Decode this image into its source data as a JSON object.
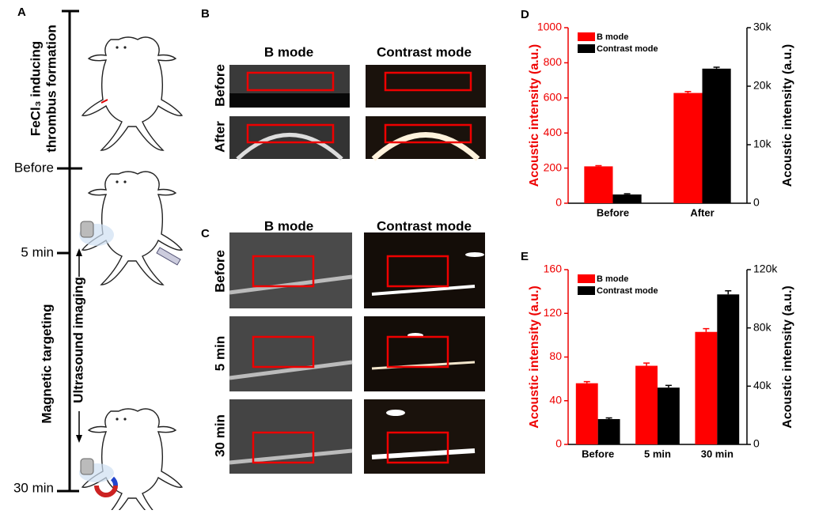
{
  "panel_a": {
    "label": "A",
    "step_lines": [
      "FeCl₃ inducing",
      "thrombus formation"
    ],
    "times": [
      "Before",
      "5 min",
      "30 min"
    ],
    "targeting": "Magnetic targeting",
    "imaging": "Ultrasound imaging"
  },
  "panel_b": {
    "label": "B",
    "columns": [
      "B mode",
      "Contrast mode"
    ],
    "rows": [
      "Before",
      "After"
    ]
  },
  "panel_c": {
    "label": "C",
    "columns": [
      "B mode",
      "Contrast mode"
    ],
    "rows": [
      "Before",
      "5 min",
      "30 min"
    ]
  },
  "chart_data": [
    {
      "type": "bar",
      "label": "D",
      "categories": [
        "Before",
        "After"
      ],
      "ylabel": "Acoustic intensity (a.u.)",
      "y2label": "Acoustic intensity (a.u.)",
      "ylim": [
        0,
        1000
      ],
      "yticks": [
        0,
        200,
        400,
        600,
        800,
        1000
      ],
      "y2lim": [
        0,
        30000
      ],
      "y2ticks": [
        0,
        {
          "value": 10000,
          "label": "10k"
        },
        {
          "value": 20000,
          "label": "20k"
        },
        {
          "value": 30000,
          "label": "30k"
        }
      ],
      "series": [
        {
          "name": "B mode",
          "color": "#ff0000",
          "values": [
            210,
            628
          ],
          "errors": [
            4,
            8
          ]
        },
        {
          "name": "Contrast mode",
          "color": "#000000",
          "axis": "y2",
          "values": [
            1500,
            23000
          ],
          "errors": [
            120,
            250
          ]
        }
      ]
    },
    {
      "type": "bar",
      "label": "E",
      "categories": [
        "Before",
        "5 min",
        "30 min"
      ],
      "ylabel": "Acoustic intensity (a.u.)",
      "y2label": "Acoustic intensity (a.u.)",
      "ylim": [
        0,
        160
      ],
      "yticks": [
        0,
        40,
        80,
        120,
        160
      ],
      "y2lim": [
        0,
        120000
      ],
      "y2ticks": [
        0,
        {
          "value": 40000,
          "label": "40k"
        },
        {
          "value": 80000,
          "label": "80k"
        },
        {
          "value": 120000,
          "label": "120k"
        }
      ],
      "series": [
        {
          "name": "B mode",
          "color": "#ff0000",
          "values": [
            56,
            72,
            103
          ],
          "errors": [
            1.5,
            2.5,
            3
          ]
        },
        {
          "name": "Contrast mode",
          "color": "#000000",
          "axis": "y2",
          "values": [
            17400,
            39000,
            103000
          ],
          "errors": [
            800,
            1500,
            2500
          ]
        }
      ]
    }
  ]
}
